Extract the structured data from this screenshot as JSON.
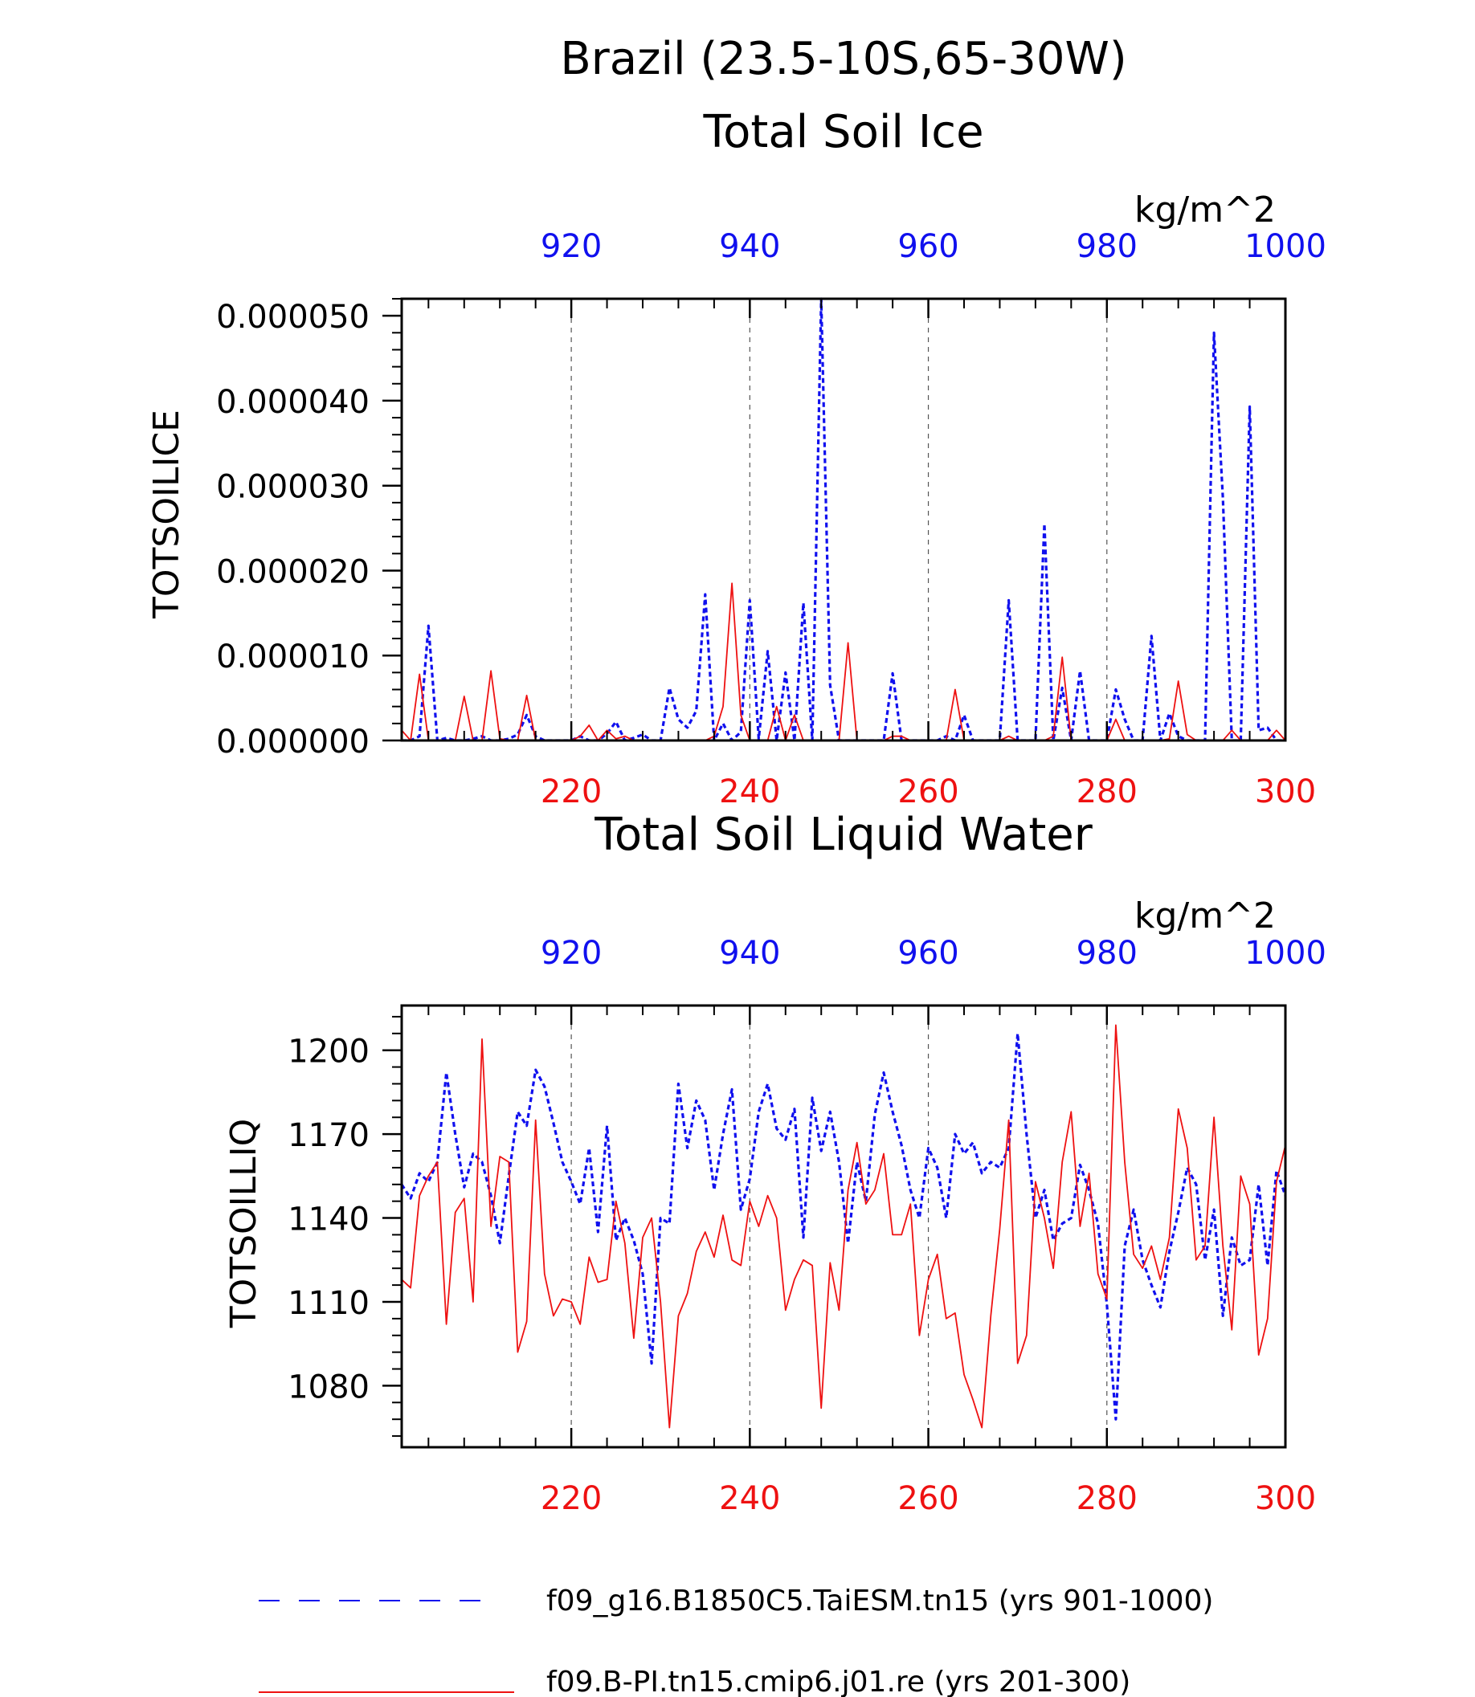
{
  "header": {
    "region_title": "Brazil (23.5-10S,65-30W)"
  },
  "colors": {
    "blue_series": "#1010ee",
    "red_series": "#ee1111",
    "axis": "#000000",
    "grid": "#555555"
  },
  "chart_data": [
    {
      "type": "line",
      "title": "Total Soil Ice",
      "ylabel": "TOTSOILICE",
      "units": "kg/m^2",
      "ylim": [
        0,
        5.2e-05
      ],
      "yticks": [
        "0.000000",
        "0.000010",
        "0.000020",
        "0.000030",
        "0.000040",
        "0.000050"
      ],
      "ytick_values": [
        0,
        1e-05,
        2e-05,
        3e-05,
        4e-05,
        5e-05
      ],
      "x_bottom": {
        "range": [
          201,
          300
        ],
        "ticks": [
          220,
          240,
          260,
          280,
          300
        ],
        "color": "red"
      },
      "x_top": {
        "range": [
          901,
          1000
        ],
        "ticks": [
          920,
          940,
          960,
          980,
          1000
        ],
        "color": "blue"
      },
      "grid": "vertical dashed at 220, 240, 260, 280",
      "series": [
        {
          "name": "f09_g16.B1850C5.TaiESM.tn15 (yrs 901-1000)",
          "color": "blue",
          "style": "dashed",
          "x_axis": "top",
          "x_start": 901,
          "values": [
            0,
            0,
            5e-07,
            1.35e-05,
            0,
            3e-07,
            0,
            0,
            2e-07,
            5e-07,
            0,
            0,
            2e-07,
            7e-07,
            3e-06,
            5e-07,
            0,
            0,
            0,
            0,
            5e-07,
            0,
            0,
            8e-07,
            2.2e-06,
            0,
            3e-07,
            7e-07,
            0,
            0,
            6.2e-06,
            2.5e-06,
            1.5e-06,
            3.5e-06,
            1.72e-05,
            0,
            2e-06,
            0,
            1e-06,
            1.65e-05,
            2e-07,
            1.05e-05,
            0,
            8e-06,
            0,
            1.62e-05,
            0,
            5.2e-05,
            6.5e-06,
            0,
            0,
            0,
            0,
            0,
            0,
            7.9e-06,
            0,
            0,
            0,
            0,
            0,
            5e-07,
            0,
            3e-06,
            0,
            0,
            0,
            0,
            1.65e-05,
            0,
            0,
            0,
            2.55e-05,
            0,
            6.2e-06,
            0,
            8.2e-06,
            0,
            0,
            0,
            6e-06,
            2.5e-06,
            0,
            0,
            1.23e-05,
            0,
            3.2e-06,
            5e-07,
            0,
            0,
            0,
            4.8e-05,
            2.85e-05,
            0,
            0,
            3.93e-05,
            1.2e-06,
            1.5e-06,
            0,
            0
          ]
        },
        {
          "name": "f09.B-PI.tn15.cmip6.j01.re (yrs 201-300)",
          "color": "red",
          "style": "solid",
          "x_axis": "bottom",
          "x_start": 201,
          "values": [
            1.2e-06,
            0,
            7.8e-06,
            0,
            0,
            0,
            0,
            5.2e-06,
            0,
            0,
            8.2e-06,
            2e-07,
            0,
            0,
            5.3e-06,
            0,
            0,
            0,
            0,
            0,
            5e-07,
            1.8e-06,
            0,
            1.2e-06,
            2e-07,
            5e-07,
            0,
            0,
            0,
            0,
            0,
            0,
            0,
            0,
            0,
            5e-07,
            4e-06,
            1.85e-05,
            3e-06,
            0,
            0,
            0,
            4e-06,
            0,
            3e-06,
            0,
            0,
            0,
            0,
            0,
            1.15e-05,
            0,
            0,
            0,
            0,
            5e-07,
            5e-07,
            0,
            0,
            0,
            0,
            0,
            6e-06,
            0,
            0,
            0,
            0,
            0,
            5e-07,
            0,
            0,
            0,
            0,
            5e-07,
            9.8e-06,
            0,
            0,
            0,
            0,
            0,
            2.5e-06,
            0,
            0,
            0,
            0,
            0,
            2e-07,
            7e-06,
            7e-07,
            0,
            0,
            0,
            0,
            1.2e-06,
            0,
            0,
            0,
            0,
            1.2e-06,
            0
          ]
        }
      ]
    },
    {
      "type": "line",
      "title": "Total Soil Liquid Water",
      "ylabel": "TOTSOILLIQ",
      "units": "kg/m^2",
      "ylim": [
        1058,
        1216
      ],
      "yticks": [
        "1080",
        "1110",
        "1140",
        "1170",
        "1200"
      ],
      "ytick_values": [
        1080,
        1110,
        1140,
        1170,
        1200
      ],
      "x_bottom": {
        "range": [
          201,
          300
        ],
        "ticks": [
          220,
          240,
          260,
          280,
          300
        ],
        "color": "red"
      },
      "x_top": {
        "range": [
          901,
          1000
        ],
        "ticks": [
          920,
          940,
          960,
          980,
          1000
        ],
        "color": "blue"
      },
      "grid": "vertical dashed at 220, 240, 260, 280",
      "series": [
        {
          "name": "f09_g16.B1850C5.TaiESM.tn15 (yrs 901-1000)",
          "color": "blue",
          "style": "dashed",
          "x_axis": "top",
          "x_start": 901,
          "values": [
            1152,
            1147,
            1156,
            1153,
            1160,
            1192,
            1170,
            1151,
            1163,
            1160,
            1148,
            1131,
            1155,
            1178,
            1173,
            1193,
            1187,
            1174,
            1160,
            1153,
            1145,
            1165,
            1135,
            1173,
            1132,
            1140,
            1132,
            1120,
            1088,
            1140,
            1138,
            1188,
            1165,
            1182,
            1175,
            1150,
            1170,
            1186,
            1143,
            1154,
            1178,
            1188,
            1172,
            1168,
            1179,
            1133,
            1183,
            1164,
            1178,
            1160,
            1131,
            1160,
            1146,
            1177,
            1192,
            1178,
            1166,
            1150,
            1140,
            1165,
            1158,
            1140,
            1170,
            1163,
            1167,
            1156,
            1160,
            1158,
            1165,
            1206,
            1170,
            1140,
            1150,
            1132,
            1138,
            1140,
            1159,
            1150,
            1138,
            1109,
            1068,
            1130,
            1143,
            1125,
            1116,
            1108,
            1128,
            1142,
            1158,
            1152,
            1125,
            1143,
            1105,
            1133,
            1123,
            1125,
            1152,
            1123,
            1157,
            1148
          ]
        },
        {
          "name": "f09.B-PI.tn15.cmip6.j01.re (yrs 201-300)",
          "color": "red",
          "style": "solid",
          "x_axis": "bottom",
          "x_start": 201,
          "values": [
            1118,
            1115,
            1148,
            1155,
            1160,
            1102,
            1142,
            1147,
            1110,
            1204,
            1137,
            1162,
            1160,
            1092,
            1103,
            1175,
            1120,
            1105,
            1111,
            1110,
            1102,
            1126,
            1117,
            1118,
            1146,
            1131,
            1097,
            1133,
            1140,
            1110,
            1065,
            1105,
            1113,
            1128,
            1135,
            1126,
            1141,
            1125,
            1123,
            1146,
            1137,
            1148,
            1140,
            1107,
            1118,
            1125,
            1123,
            1072,
            1124,
            1107,
            1150,
            1167,
            1145,
            1150,
            1163,
            1134,
            1134,
            1145,
            1098,
            1118,
            1127,
            1104,
            1106,
            1084,
            1075,
            1065,
            1105,
            1136,
            1175,
            1088,
            1098,
            1153,
            1140,
            1122,
            1160,
            1178,
            1137,
            1156,
            1120,
            1111,
            1209,
            1160,
            1127,
            1122,
            1130,
            1118,
            1133,
            1179,
            1165,
            1125,
            1130,
            1176,
            1130,
            1100,
            1155,
            1145,
            1091,
            1104,
            1153,
            1166
          ]
        }
      ]
    }
  ],
  "legend": {
    "entries": [
      {
        "label": "f09_g16.B1850C5.TaiESM.tn15 (yrs 901-1000)",
        "color": "blue",
        "style": "dashed"
      },
      {
        "label": "f09.B-PI.tn15.cmip6.j01.re (yrs 201-300)",
        "color": "red",
        "style": "solid"
      }
    ]
  }
}
